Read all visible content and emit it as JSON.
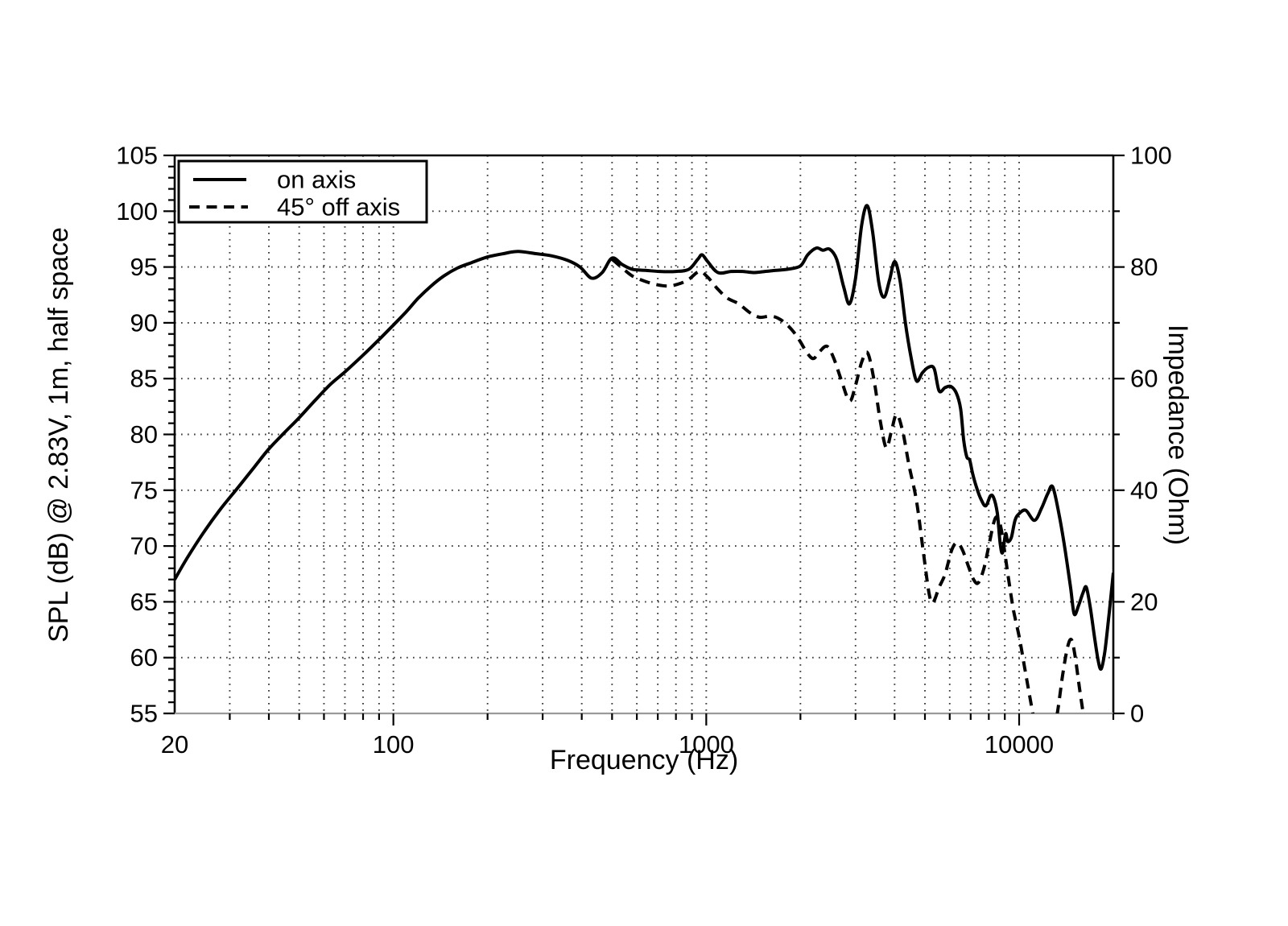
{
  "figure_title": "Loudspeaker frequency response and impedance graph",
  "colors": {
    "background": "#ffffff",
    "curve": "#000000",
    "grid_dots": "#3d3d3d",
    "bottom_axis": "#9a9a9a",
    "text": "#000000"
  },
  "chart_data": {
    "type": "line",
    "title": "",
    "xlabel": "Frequency (Hz)",
    "ylabel_left": "SPL (dB) @ 2.83V, 1m, half space",
    "ylabel_right": "Impedance (Ohm)",
    "x_axis": {
      "scale": "log",
      "min": 20,
      "max": 20000,
      "labeled_ticks": [
        {
          "value": 20,
          "label": "20"
        },
        {
          "value": 100,
          "label": "100"
        },
        {
          "value": 1000,
          "label": "1000"
        },
        {
          "value": 10000,
          "label": "10000"
        }
      ],
      "major_ticks": [
        100,
        1000,
        10000
      ],
      "minor_ticks": [
        30,
        40,
        50,
        60,
        70,
        80,
        90,
        200,
        300,
        400,
        500,
        600,
        700,
        800,
        900,
        2000,
        3000,
        4000,
        5000,
        6000,
        7000,
        8000,
        9000,
        20000
      ]
    },
    "y_axis_left": {
      "min": 55,
      "max": 105,
      "major_tick_step": 5,
      "minor_tick_step": 1,
      "labels": [
        105,
        100,
        95,
        90,
        85,
        80,
        75,
        70,
        65,
        60,
        55
      ]
    },
    "y_axis_right": {
      "min": 0,
      "max": 100,
      "major_tick_step": 20,
      "minor_tick_step": 10,
      "labels": [
        100,
        80,
        60,
        40,
        20,
        0
      ]
    },
    "grid": {
      "horizontal_db": [
        60,
        65,
        70,
        75,
        80,
        85,
        90,
        95,
        100
      ],
      "vertical_hz": [
        30,
        40,
        50,
        60,
        70,
        80,
        90,
        100,
        200,
        300,
        400,
        500,
        600,
        700,
        800,
        900,
        1000,
        2000,
        3000,
        4000,
        5000,
        6000,
        7000,
        8000,
        9000,
        10000
      ]
    },
    "legend": {
      "position": "top-left",
      "entries": [
        {
          "label": "on axis",
          "style": "solid"
        },
        {
          "label": "45° off axis",
          "style": "dashed"
        }
      ]
    },
    "series": [
      {
        "name": "on axis",
        "style": "solid",
        "color": "#000000",
        "unit": "dB SPL",
        "points": [
          [
            20,
            67.0
          ],
          [
            22,
            69.0
          ],
          [
            25,
            71.4
          ],
          [
            28,
            73.3
          ],
          [
            32,
            75.3
          ],
          [
            36,
            77.1
          ],
          [
            40,
            78.7
          ],
          [
            45,
            80.2
          ],
          [
            50,
            81.5
          ],
          [
            56,
            83.0
          ],
          [
            63,
            84.5
          ],
          [
            70,
            85.6
          ],
          [
            80,
            87.1
          ],
          [
            90,
            88.5
          ],
          [
            100,
            89.8
          ],
          [
            110,
            91.0
          ],
          [
            120,
            92.2
          ],
          [
            132,
            93.3
          ],
          [
            145,
            94.2
          ],
          [
            160,
            94.9
          ],
          [
            178,
            95.4
          ],
          [
            200,
            95.9
          ],
          [
            225,
            96.2
          ],
          [
            250,
            96.4
          ],
          [
            285,
            96.2
          ],
          [
            320,
            96.0
          ],
          [
            360,
            95.6
          ],
          [
            395,
            95.0
          ],
          [
            430,
            94.0
          ],
          [
            465,
            94.5
          ],
          [
            500,
            95.8
          ],
          [
            540,
            95.2
          ],
          [
            580,
            94.8
          ],
          [
            640,
            94.7
          ],
          [
            710,
            94.6
          ],
          [
            800,
            94.6
          ],
          [
            880,
            94.8
          ],
          [
            940,
            95.7
          ],
          [
            970,
            96.1
          ],
          [
            1010,
            95.5
          ],
          [
            1090,
            94.5
          ],
          [
            1200,
            94.6
          ],
          [
            1310,
            94.6
          ],
          [
            1420,
            94.5
          ],
          [
            1540,
            94.6
          ],
          [
            1670,
            94.7
          ],
          [
            1820,
            94.8
          ],
          [
            2000,
            95.1
          ],
          [
            2110,
            96.1
          ],
          [
            2250,
            96.7
          ],
          [
            2360,
            96.5
          ],
          [
            2480,
            96.6
          ],
          [
            2610,
            95.7
          ],
          [
            2750,
            93.2
          ],
          [
            2870,
            91.7
          ],
          [
            3000,
            94.0
          ],
          [
            3140,
            98.8
          ],
          [
            3270,
            100.5
          ],
          [
            3400,
            98.2
          ],
          [
            3560,
            93.6
          ],
          [
            3700,
            92.3
          ],
          [
            3850,
            93.8
          ],
          [
            4000,
            95.5
          ],
          [
            4160,
            93.8
          ],
          [
            4330,
            90.0
          ],
          [
            4520,
            86.8
          ],
          [
            4700,
            84.8
          ],
          [
            4900,
            85.5
          ],
          [
            5120,
            86.0
          ],
          [
            5350,
            85.9
          ],
          [
            5550,
            83.9
          ],
          [
            5800,
            84.2
          ],
          [
            6050,
            84.3
          ],
          [
            6300,
            83.7
          ],
          [
            6500,
            82.3
          ],
          [
            6650,
            79.5
          ],
          [
            6800,
            78.0
          ],
          [
            6950,
            77.7
          ],
          [
            7100,
            76.5
          ],
          [
            7300,
            75.3
          ],
          [
            7550,
            74.2
          ],
          [
            7820,
            73.6
          ],
          [
            8100,
            74.5
          ],
          [
            8300,
            74.3
          ],
          [
            8520,
            72.9
          ],
          [
            8700,
            70.2
          ],
          [
            8850,
            69.4
          ],
          [
            9050,
            71.1
          ],
          [
            9200,
            70.4
          ],
          [
            9450,
            70.8
          ],
          [
            9700,
            72.3
          ],
          [
            10000,
            72.9
          ],
          [
            10500,
            73.2
          ],
          [
            11200,
            72.3
          ],
          [
            11800,
            73.4
          ],
          [
            12350,
            74.7
          ],
          [
            12800,
            75.3
          ],
          [
            13400,
            72.9
          ],
          [
            14000,
            69.8
          ],
          [
            14600,
            66.3
          ],
          [
            15000,
            63.9
          ],
          [
            15500,
            64.7
          ],
          [
            16000,
            65.8
          ],
          [
            16400,
            66.3
          ],
          [
            16900,
            64.4
          ],
          [
            17400,
            61.9
          ],
          [
            17900,
            59.7
          ],
          [
            18300,
            59.0
          ],
          [
            18800,
            60.6
          ],
          [
            19400,
            64.0
          ],
          [
            20000,
            67.6
          ]
        ]
      },
      {
        "name": "45° off axis",
        "style": "dashed",
        "color": "#000000",
        "unit": "dB SPL",
        "points": [
          [
            500,
            95.7
          ],
          [
            540,
            94.9
          ],
          [
            580,
            94.2
          ],
          [
            640,
            93.7
          ],
          [
            700,
            93.4
          ],
          [
            760,
            93.3
          ],
          [
            820,
            93.5
          ],
          [
            880,
            93.9
          ],
          [
            950,
            94.6
          ],
          [
            1010,
            94.1
          ],
          [
            1090,
            93.0
          ],
          [
            1170,
            92.2
          ],
          [
            1270,
            91.7
          ],
          [
            1380,
            90.9
          ],
          [
            1480,
            90.5
          ],
          [
            1600,
            90.6
          ],
          [
            1700,
            90.4
          ],
          [
            1800,
            89.9
          ],
          [
            1900,
            89.2
          ],
          [
            2000,
            88.3
          ],
          [
            2100,
            87.3
          ],
          [
            2200,
            86.8
          ],
          [
            2300,
            87.4
          ],
          [
            2430,
            87.9
          ],
          [
            2550,
            86.9
          ],
          [
            2700,
            84.9
          ],
          [
            2870,
            83.0
          ],
          [
            3000,
            84.4
          ],
          [
            3140,
            86.5
          ],
          [
            3280,
            87.3
          ],
          [
            3440,
            84.8
          ],
          [
            3600,
            81.2
          ],
          [
            3760,
            78.8
          ],
          [
            3900,
            80.2
          ],
          [
            4060,
            81.8
          ],
          [
            4250,
            80.2
          ],
          [
            4450,
            77.2
          ],
          [
            4700,
            74.0
          ],
          [
            4950,
            69.3
          ],
          [
            5150,
            65.8
          ],
          [
            5300,
            64.9
          ],
          [
            5550,
            66.3
          ],
          [
            5800,
            67.5
          ],
          [
            6100,
            69.7
          ],
          [
            6350,
            70.3
          ],
          [
            6600,
            69.6
          ],
          [
            6900,
            68.1
          ],
          [
            7150,
            67.0
          ],
          [
            7400,
            66.7
          ],
          [
            7700,
            67.9
          ],
          [
            8000,
            70.0
          ],
          [
            8280,
            72.0
          ],
          [
            8500,
            72.6
          ],
          [
            8750,
            71.6
          ],
          [
            9000,
            69.4
          ],
          [
            9300,
            66.6
          ],
          [
            9600,
            64.2
          ],
          [
            10000,
            61.9
          ],
          [
            10400,
            59.2
          ],
          [
            10800,
            56.6
          ],
          [
            11300,
            53.8
          ],
          [
            11900,
            52.2
          ],
          [
            12600,
            52.8
          ],
          [
            13200,
            54.8
          ],
          [
            13800,
            58.6
          ],
          [
            14300,
            61.0
          ],
          [
            14700,
            61.6
          ],
          [
            15100,
            60.1
          ],
          [
            15600,
            57.2
          ],
          [
            16100,
            54.6
          ],
          [
            16600,
            51.8
          ]
        ]
      }
    ]
  }
}
